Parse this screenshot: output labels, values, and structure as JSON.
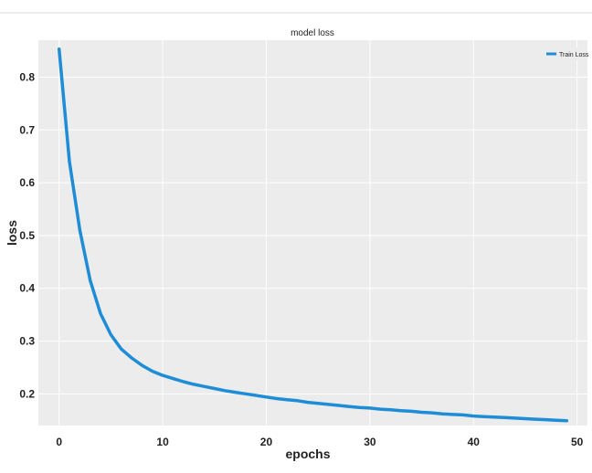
{
  "chart_data": {
    "type": "line",
    "title": "model loss",
    "xlabel": "epochs",
    "ylabel": "loss",
    "xlim": [
      -2,
      51
    ],
    "ylim": [
      0.14,
      0.87
    ],
    "xticks": [
      0,
      10,
      20,
      30,
      40,
      50
    ],
    "yticks": [
      0.2,
      0.3,
      0.4,
      0.5,
      0.6,
      0.7,
      0.8
    ],
    "xtick_labels": [
      "0",
      "10",
      "20",
      "30",
      "40",
      "50"
    ],
    "ytick_labels": [
      "0.2",
      "0.3",
      "0.4",
      "0.5",
      "0.6",
      "0.7",
      "0.8"
    ],
    "grid": true,
    "legend_position": "top-right",
    "series": [
      {
        "name": "Train Loss",
        "color": "#1f8dd6",
        "x": [
          0,
          1,
          2,
          3,
          4,
          5,
          6,
          7,
          8,
          9,
          10,
          11,
          12,
          13,
          14,
          15,
          16,
          17,
          18,
          19,
          20,
          21,
          22,
          23,
          24,
          25,
          26,
          27,
          28,
          29,
          30,
          31,
          32,
          33,
          34,
          35,
          36,
          37,
          38,
          39,
          40,
          41,
          42,
          43,
          44,
          45,
          46,
          47,
          48,
          49
        ],
        "y": [
          0.853,
          0.64,
          0.51,
          0.415,
          0.352,
          0.312,
          0.285,
          0.268,
          0.254,
          0.243,
          0.235,
          0.229,
          0.223,
          0.218,
          0.214,
          0.21,
          0.206,
          0.203,
          0.2,
          0.197,
          0.194,
          0.191,
          0.189,
          0.187,
          0.184,
          0.182,
          0.18,
          0.178,
          0.176,
          0.174,
          0.173,
          0.171,
          0.17,
          0.168,
          0.167,
          0.165,
          0.164,
          0.162,
          0.161,
          0.16,
          0.158,
          0.157,
          0.156,
          0.155,
          0.154,
          0.153,
          0.152,
          0.151,
          0.15,
          0.149
        ]
      }
    ]
  }
}
